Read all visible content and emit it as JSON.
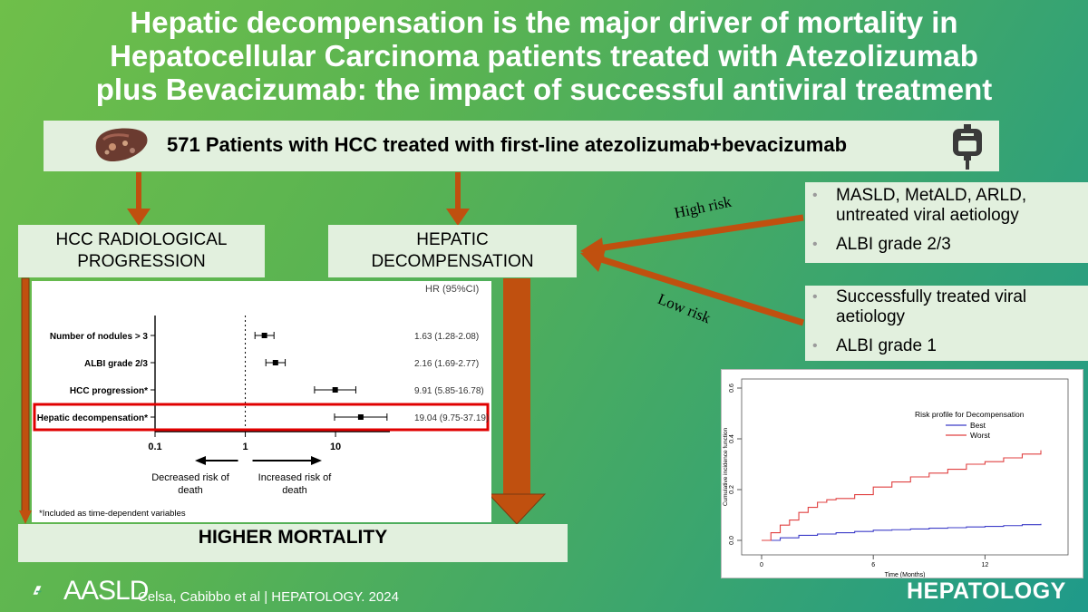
{
  "title": {
    "line1": "Hepatic decompensation is the major driver of mortality in",
    "line2": "Hepatocellular Carcinoma patients treated with Atezolizumab",
    "line3": "plus Bevacizumab: the impact of successful antiviral treatment"
  },
  "patients_label": "571 Patients with HCC treated with first-line atezolizumab+bevacizumab",
  "icons": [
    "liver-image",
    "iv-bag-icon",
    "aasld-logo"
  ],
  "boxes": {
    "radiological": [
      "HCC RADIOLOGICAL",
      "PROGRESSION"
    ],
    "decompensation": [
      "HEPATIC",
      "DECOMPENSATION"
    ],
    "mortality": "HIGHER MORTALITY"
  },
  "risk": {
    "high_label": "High risk",
    "low_label": "Low risk",
    "high_items": [
      "MASLD, MetALD, ARLD, untreated viral aetiology",
      "ALBI grade 2/3"
    ],
    "low_items": [
      "Successfully treated viral aetiology",
      "ALBI grade 1"
    ]
  },
  "colors": {
    "arrow": "#c0500f",
    "box_bg": "#e2f0de",
    "highlight": "#e00000"
  },
  "chart_data": [
    {
      "type": "forest",
      "header": "HR (95%CI)",
      "xscale": "log",
      "xticks": [
        "0.1",
        "1",
        "10"
      ],
      "xlim": [
        0.1,
        40
      ],
      "direction_left": "Decreased risk of death",
      "direction_right": "Increased risk of death",
      "footnote": "*Included as time-dependent variables",
      "rows": [
        {
          "label": "Number of nodules > 3",
          "hr": 1.63,
          "lo": 1.28,
          "hi": 2.08,
          "text": "1.63 (1.28-2.08)",
          "highlight": false
        },
        {
          "label": "ALBI grade 2/3",
          "hr": 2.16,
          "lo": 1.69,
          "hi": 2.77,
          "text": "2.16 (1.69-2.77)",
          "highlight": false
        },
        {
          "label": "HCC progression*",
          "hr": 9.91,
          "lo": 5.85,
          "hi": 16.78,
          "text": "9.91 (5.85-16.78)",
          "highlight": false
        },
        {
          "label": "Hepatic decompensation*",
          "hr": 19.04,
          "lo": 9.75,
          "hi": 37.19,
          "text": "19.04  (9.75-37.19)",
          "highlight": true
        }
      ]
    },
    {
      "type": "line",
      "ylabel": "Cumulative incidence function",
      "xlabel": "Time (Months)",
      "xlim": [
        0,
        15
      ],
      "ylim": [
        0,
        0.6
      ],
      "xticks": [
        "0",
        "6",
        "12"
      ],
      "yticks": [
        "0.0",
        "0.2",
        "0.4",
        "0.6"
      ],
      "legend_title": "Risk profile for Decompensation",
      "legend_position": "top-right",
      "series": [
        {
          "name": "Best",
          "color": "#3c3cc8",
          "x": [
            0,
            1,
            2,
            3,
            4,
            5,
            6,
            7,
            8,
            9,
            10,
            11,
            12,
            13,
            14,
            15
          ],
          "y": [
            0,
            0.01,
            0.02,
            0.025,
            0.03,
            0.035,
            0.04,
            0.042,
            0.045,
            0.048,
            0.05,
            0.053,
            0.055,
            0.058,
            0.062,
            0.065
          ]
        },
        {
          "name": "Worst",
          "color": "#e04040",
          "x": [
            0,
            0.5,
            1,
            1.5,
            2,
            2.5,
            3,
            3.5,
            4,
            5,
            6,
            7,
            8,
            9,
            10,
            11,
            12,
            13,
            14,
            15
          ],
          "y": [
            0,
            0.03,
            0.06,
            0.08,
            0.11,
            0.13,
            0.15,
            0.16,
            0.165,
            0.18,
            0.21,
            0.23,
            0.25,
            0.265,
            0.28,
            0.3,
            0.31,
            0.325,
            0.34,
            0.355
          ]
        }
      ]
    }
  ],
  "footer": {
    "citation": "Celsa, Cabibbo et al  |  HEPATOLOGY. 2024",
    "aasld": "AASLD",
    "journal": "HEPATOLOGY"
  }
}
